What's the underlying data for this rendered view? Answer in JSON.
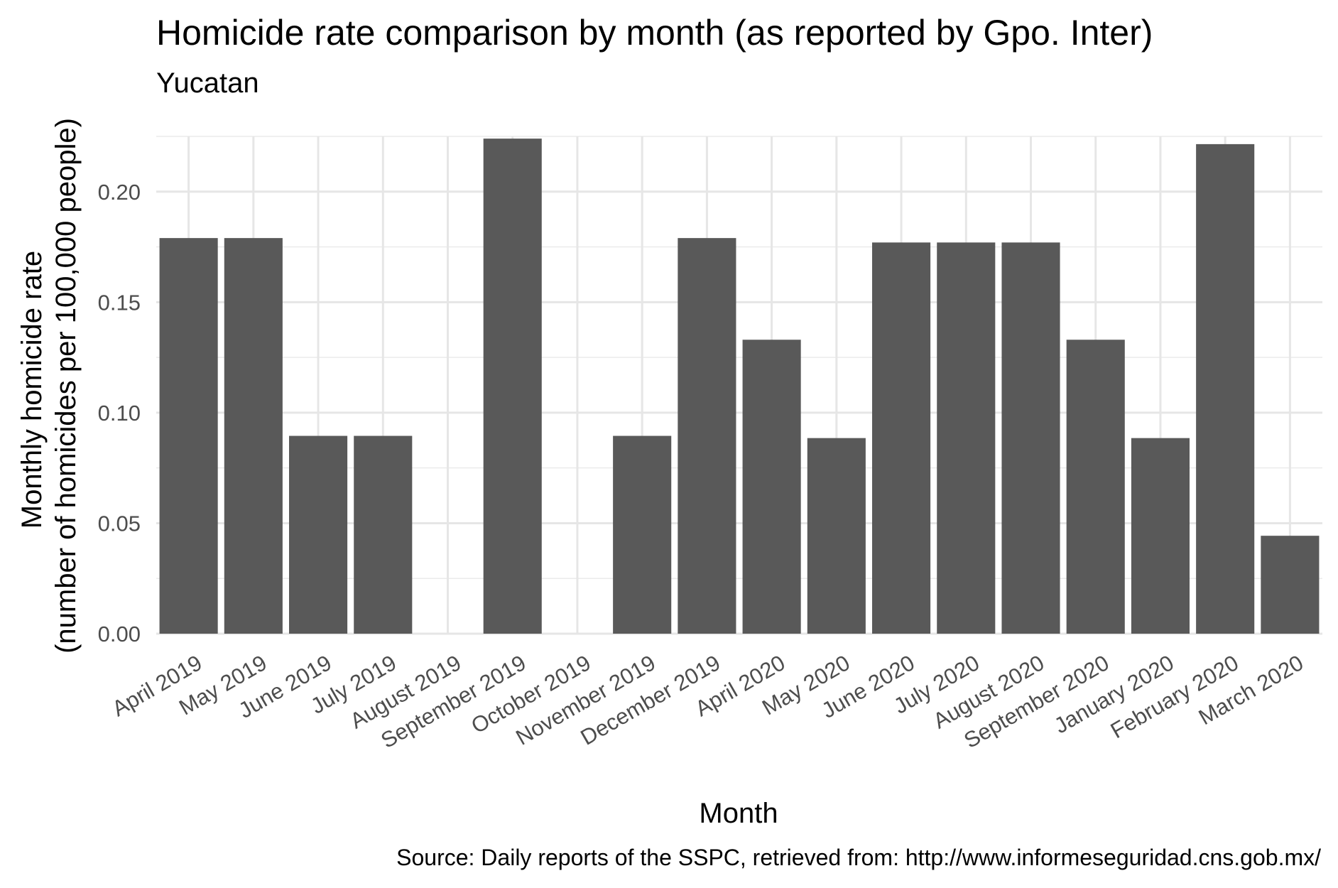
{
  "chart_data": {
    "type": "bar",
    "title": "Homicide rate comparison by month (as reported by Gpo. Inter)",
    "subtitle": "Yucatan",
    "xlabel": "Month",
    "ylabel": [
      "Monthly homicide rate",
      "(number of homicides per 100,000 people)"
    ],
    "caption": "Source: Daily reports of the SSPC, retrieved from: http://www.informeseguridad.cns.gob.mx/",
    "categories": [
      "April 2019",
      "May 2019",
      "June 2019",
      "July 2019",
      "August 2019",
      "September 2019",
      "October 2019",
      "November 2019",
      "December 2019",
      "April 2020",
      "May 2020",
      "June 2020",
      "July 2020",
      "August 2020",
      "September 2020",
      "January 2020",
      "February 2020",
      "March 2020"
    ],
    "values": [
      0.179,
      0.179,
      0.0895,
      0.0895,
      0.0,
      0.224,
      0.0,
      0.0895,
      0.179,
      0.133,
      0.0885,
      0.177,
      0.177,
      0.177,
      0.133,
      0.0885,
      0.2215,
      0.0443
    ],
    "ylim": [
      0,
      0.225
    ],
    "yticks": [
      0.0,
      0.05,
      0.1,
      0.15,
      0.2
    ],
    "ytick_labels": [
      "0.00",
      "0.05",
      "0.10",
      "0.15",
      "0.20"
    ],
    "grid": true,
    "bar_color": "#595959"
  }
}
